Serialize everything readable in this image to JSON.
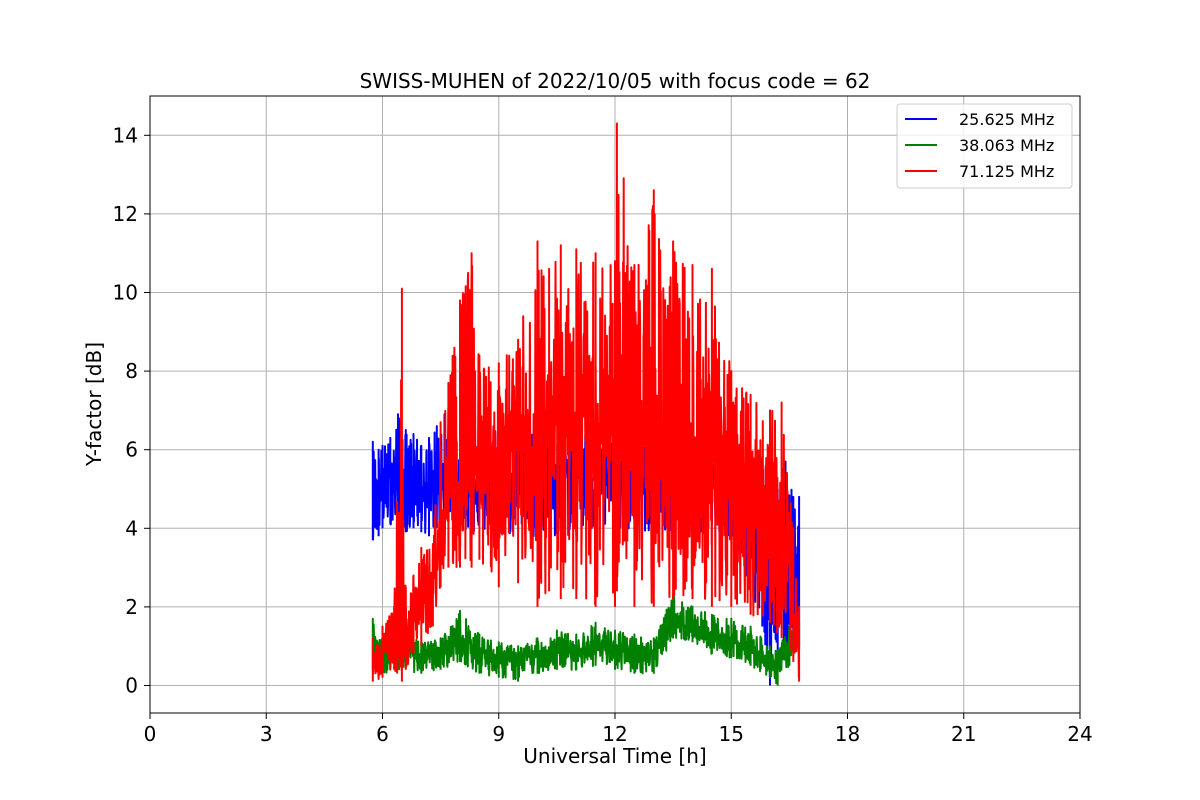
{
  "chart_data": {
    "type": "line",
    "title": "SWISS-MUHEN of 2022/10/05 with focus code = 62",
    "xlabel": "Universal Time [h]",
    "ylabel": "Y-factor [dB]",
    "xlim": [
      0,
      24
    ],
    "ylim": [
      -0.7,
      15
    ],
    "xticks": [
      0,
      3,
      6,
      9,
      12,
      15,
      18,
      21,
      24
    ],
    "yticks": [
      0,
      2,
      4,
      6,
      8,
      10,
      12,
      14
    ],
    "grid": true,
    "legend_position": "top-right",
    "series": [
      {
        "name": "25.625 MHz",
        "color": "#0000ff",
        "x": [
          5.75,
          5.9,
          6.0,
          6.2,
          6.4,
          6.6,
          6.8,
          7.0,
          7.2,
          7.4,
          7.6,
          7.8,
          8.0,
          9.0,
          10.0,
          11.0,
          12.0,
          13.0,
          14.0,
          15.0,
          15.5,
          15.8,
          16.0,
          16.2,
          16.4,
          16.6,
          16.75
        ],
        "y": [
          5.0,
          4.8,
          5.1,
          5.2,
          5.3,
          5.0,
          5.2,
          5.1,
          5.0,
          5.3,
          5.2,
          5.8,
          5.0,
          5.5,
          5.2,
          5.4,
          5.0,
          5.3,
          5.5,
          5.0,
          4.2,
          3.8,
          3.2,
          2.5,
          3.5,
          3.0,
          3.4
        ],
        "low": [
          3.7,
          3.8,
          4.0,
          4.1,
          4.0,
          3.9,
          4.0,
          3.9,
          3.8,
          4.0,
          4.1,
          4.2,
          3.9,
          3.8,
          3.7,
          3.8,
          3.9,
          3.8,
          3.9,
          3.8,
          2.0,
          1.5,
          0.0,
          0.5,
          0.7,
          0.9,
          1.0
        ],
        "high": [
          6.2,
          6.0,
          6.1,
          6.3,
          6.9,
          6.5,
          6.4,
          6.1,
          6.3,
          6.6,
          6.9,
          6.5,
          6.4,
          6.7,
          6.5,
          6.6,
          6.4,
          6.5,
          6.4,
          6.2,
          5.9,
          5.8,
          5.7,
          5.0,
          5.7,
          4.8,
          4.8
        ]
      },
      {
        "name": "38.063 MHz",
        "color": "#008000",
        "x": [
          5.75,
          6.0,
          6.5,
          7.0,
          7.5,
          8.0,
          8.5,
          9.0,
          9.5,
          10.0,
          10.5,
          11.0,
          11.5,
          12.0,
          12.5,
          13.0,
          13.5,
          14.0,
          14.5,
          15.0,
          15.5,
          16.0,
          16.2,
          16.5,
          16.75
        ],
        "y": [
          1.0,
          0.9,
          1.0,
          0.7,
          0.8,
          1.2,
          0.9,
          0.7,
          0.6,
          0.8,
          0.9,
          0.9,
          1.0,
          0.9,
          0.8,
          0.8,
          1.6,
          1.5,
          1.2,
          1.1,
          1.0,
          0.6,
          0.4,
          1.0,
          1.3
        ],
        "low": [
          0.4,
          0.3,
          0.4,
          0.3,
          0.4,
          0.6,
          0.3,
          0.2,
          0.1,
          0.3,
          0.4,
          0.4,
          0.5,
          0.4,
          0.3,
          0.3,
          1.2,
          1.1,
          0.8,
          0.7,
          0.5,
          0.2,
          0.0,
          0.5,
          0.9
        ],
        "high": [
          1.7,
          1.3,
          1.4,
          1.1,
          1.2,
          1.9,
          1.3,
          1.1,
          1.0,
          1.2,
          1.4,
          1.3,
          1.6,
          1.4,
          1.3,
          1.2,
          2.3,
          2.0,
          1.8,
          1.7,
          1.5,
          1.0,
          0.9,
          1.5,
          1.6
        ]
      },
      {
        "name": "71.125 MHz",
        "color": "#ff0000",
        "x": [
          5.75,
          6.0,
          6.3,
          6.5,
          6.6,
          6.8,
          7.0,
          7.3,
          7.5,
          7.7,
          8.0,
          8.3,
          8.5,
          9.0,
          9.5,
          10.0,
          10.3,
          10.6,
          11.0,
          11.5,
          12.0,
          12.05,
          12.5,
          13.0,
          13.5,
          14.0,
          14.5,
          15.0,
          15.5,
          16.0,
          16.3,
          16.6,
          16.75
        ],
        "y": [
          0.6,
          0.8,
          1.2,
          1.0,
          1.4,
          1.8,
          2.0,
          2.6,
          4.0,
          4.6,
          5.0,
          5.5,
          5.3,
          5.8,
          6.0,
          5.5,
          6.5,
          6.8,
          7.0,
          6.5,
          6.6,
          7.0,
          6.4,
          6.5,
          6.3,
          6.0,
          5.8,
          4.8,
          4.5,
          4.2,
          3.5,
          2.0,
          1.0
        ],
        "low": [
          0.1,
          0.2,
          0.4,
          0.1,
          0.4,
          0.8,
          1.0,
          1.5,
          2.5,
          3.0,
          3.0,
          3.0,
          3.2,
          2.5,
          2.6,
          2.0,
          2.4,
          2.2,
          2.2,
          2.0,
          2.0,
          2.4,
          2.0,
          2.0,
          2.2,
          2.2,
          2.0,
          2.0,
          1.8,
          1.6,
          1.2,
          0.6,
          0.1
        ],
        "high": [
          1.2,
          1.5,
          2.0,
          10.1,
          2.5,
          2.8,
          3.5,
          3.6,
          6.7,
          7.7,
          9.8,
          11.0,
          8.4,
          8.2,
          8.8,
          11.3,
          10.6,
          11.2,
          11.1,
          11.0,
          10.8,
          14.3,
          10.7,
          12.6,
          11.3,
          10.7,
          10.6,
          8.0,
          7.4,
          7.0,
          7.2,
          4.0,
          2.0
        ]
      }
    ]
  }
}
